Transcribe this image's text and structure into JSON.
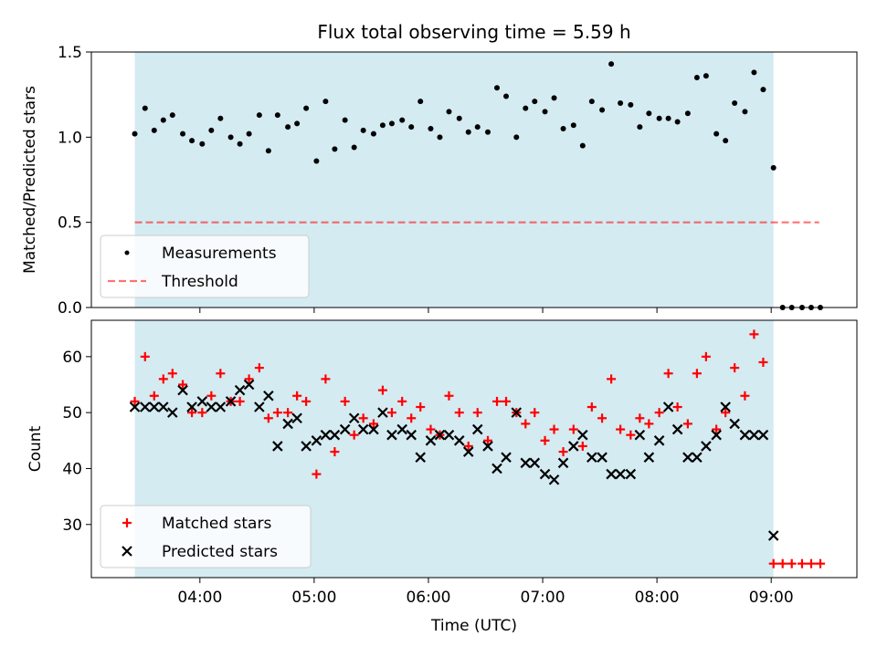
{
  "title": "Flux total observing time = 5.59 h",
  "xlabel": "Time (UTC)",
  "colors": {
    "shade": "#add8e6",
    "threshold": "#ff0000",
    "matched": "#ff0000",
    "predicted": "#000000",
    "measurements": "#000000"
  },
  "x_tick_labels": [
    "04:00",
    "05:00",
    "06:00",
    "07:00",
    "08:00",
    "09:00"
  ],
  "chart_data": [
    {
      "type": "scatter",
      "ylabel": "Matched/Predicted stars",
      "ylim": [
        0,
        1.5
      ],
      "y_ticks": [
        0,
        0.5,
        1.0,
        1.5
      ],
      "y_tick_labels": [
        "0.0",
        "0.5",
        "1.0",
        "1.5"
      ],
      "xlim_hours": [
        3.05,
        9.75
      ],
      "observing_window_hours": [
        3.43,
        9.02
      ],
      "legend": {
        "position": "lower-left",
        "entries": [
          {
            "label": "Measurements"
          },
          {
            "label": "Threshold"
          }
        ]
      },
      "threshold": {
        "value": 0.5,
        "x_from_hours": 3.43,
        "x_to_hours": 9.42
      },
      "series": [
        {
          "name": "Measurements",
          "marker": "dot",
          "points": [
            [
              3.43,
              1.02
            ],
            [
              3.52,
              1.17
            ],
            [
              3.6,
              1.04
            ],
            [
              3.68,
              1.1
            ],
            [
              3.76,
              1.13
            ],
            [
              3.85,
              1.02
            ],
            [
              3.93,
              0.98
            ],
            [
              4.02,
              0.96
            ],
            [
              4.1,
              1.04
            ],
            [
              4.18,
              1.11
            ],
            [
              4.27,
              1.0
            ],
            [
              4.35,
              0.96
            ],
            [
              4.43,
              1.02
            ],
            [
              4.52,
              1.13
            ],
            [
              4.6,
              0.92
            ],
            [
              4.68,
              1.13
            ],
            [
              4.77,
              1.06
            ],
            [
              4.85,
              1.08
            ],
            [
              4.93,
              1.17
            ],
            [
              5.02,
              0.86
            ],
            [
              5.1,
              1.21
            ],
            [
              5.18,
              0.93
            ],
            [
              5.27,
              1.1
            ],
            [
              5.35,
              0.94
            ],
            [
              5.43,
              1.04
            ],
            [
              5.52,
              1.02
            ],
            [
              5.6,
              1.07
            ],
            [
              5.68,
              1.08
            ],
            [
              5.77,
              1.1
            ],
            [
              5.85,
              1.06
            ],
            [
              5.93,
              1.21
            ],
            [
              6.02,
              1.05
            ],
            [
              6.1,
              1.0
            ],
            [
              6.18,
              1.15
            ],
            [
              6.27,
              1.11
            ],
            [
              6.35,
              1.03
            ],
            [
              6.43,
              1.06
            ],
            [
              6.52,
              1.03
            ],
            [
              6.6,
              1.29
            ],
            [
              6.68,
              1.24
            ],
            [
              6.77,
              1.0
            ],
            [
              6.85,
              1.17
            ],
            [
              6.93,
              1.21
            ],
            [
              7.02,
              1.15
            ],
            [
              7.1,
              1.23
            ],
            [
              7.18,
              1.05
            ],
            [
              7.27,
              1.07
            ],
            [
              7.35,
              0.95
            ],
            [
              7.43,
              1.21
            ],
            [
              7.52,
              1.16
            ],
            [
              7.6,
              1.43
            ],
            [
              7.68,
              1.2
            ],
            [
              7.77,
              1.19
            ],
            [
              7.85,
              1.06
            ],
            [
              7.93,
              1.14
            ],
            [
              8.02,
              1.11
            ],
            [
              8.1,
              1.11
            ],
            [
              8.18,
              1.09
            ],
            [
              8.27,
              1.14
            ],
            [
              8.35,
              1.35
            ],
            [
              8.43,
              1.36
            ],
            [
              8.52,
              1.02
            ],
            [
              8.6,
              0.98
            ],
            [
              8.68,
              1.2
            ],
            [
              8.77,
              1.15
            ],
            [
              8.85,
              1.38
            ],
            [
              8.93,
              1.28
            ],
            [
              9.02,
              0.82
            ],
            [
              9.1,
              0.0
            ],
            [
              9.18,
              0.0
            ],
            [
              9.27,
              0.0
            ],
            [
              9.35,
              0.0
            ],
            [
              9.43,
              0.0
            ]
          ]
        }
      ]
    },
    {
      "type": "scatter",
      "ylabel": "Count",
      "ylim": [
        20.5,
        66.5
      ],
      "y_ticks": [
        30,
        40,
        50,
        60
      ],
      "y_tick_labels": [
        "30",
        "40",
        "50",
        "60"
      ],
      "xlim_hours": [
        3.05,
        9.75
      ],
      "observing_window_hours": [
        3.43,
        9.02
      ],
      "legend": {
        "position": "lower-left",
        "entries": [
          {
            "label": "Matched stars"
          },
          {
            "label": "Predicted stars"
          }
        ]
      },
      "series": [
        {
          "name": "Matched stars",
          "marker": "plus",
          "points": [
            [
              3.43,
              52
            ],
            [
              3.52,
              60
            ],
            [
              3.6,
              53
            ],
            [
              3.68,
              56
            ],
            [
              3.76,
              57
            ],
            [
              3.85,
              55
            ],
            [
              3.93,
              50
            ],
            [
              4.02,
              50
            ],
            [
              4.1,
              53
            ],
            [
              4.18,
              57
            ],
            [
              4.27,
              52
            ],
            [
              4.35,
              52
            ],
            [
              4.43,
              56
            ],
            [
              4.52,
              58
            ],
            [
              4.6,
              49
            ],
            [
              4.68,
              50
            ],
            [
              4.77,
              50
            ],
            [
              4.85,
              53
            ],
            [
              4.93,
              52
            ],
            [
              5.02,
              39
            ],
            [
              5.1,
              56
            ],
            [
              5.18,
              43
            ],
            [
              5.27,
              52
            ],
            [
              5.35,
              46
            ],
            [
              5.43,
              49
            ],
            [
              5.52,
              48
            ],
            [
              5.6,
              54
            ],
            [
              5.68,
              50
            ],
            [
              5.77,
              52
            ],
            [
              5.85,
              49
            ],
            [
              5.93,
              51
            ],
            [
              6.02,
              47
            ],
            [
              6.1,
              46
            ],
            [
              6.18,
              53
            ],
            [
              6.27,
              50
            ],
            [
              6.35,
              44
            ],
            [
              6.43,
              50
            ],
            [
              6.52,
              45
            ],
            [
              6.6,
              52
            ],
            [
              6.68,
              52
            ],
            [
              6.77,
              50
            ],
            [
              6.85,
              48
            ],
            [
              6.93,
              50
            ],
            [
              7.02,
              45
            ],
            [
              7.1,
              47
            ],
            [
              7.18,
              43
            ],
            [
              7.27,
              47
            ],
            [
              7.35,
              44
            ],
            [
              7.43,
              51
            ],
            [
              7.52,
              49
            ],
            [
              7.6,
              56
            ],
            [
              7.68,
              47
            ],
            [
              7.77,
              46
            ],
            [
              7.85,
              49
            ],
            [
              7.93,
              48
            ],
            [
              8.02,
              50
            ],
            [
              8.1,
              57
            ],
            [
              8.18,
              51
            ],
            [
              8.27,
              48
            ],
            [
              8.35,
              57
            ],
            [
              8.43,
              60
            ],
            [
              8.52,
              47
            ],
            [
              8.6,
              50
            ],
            [
              8.68,
              58
            ],
            [
              8.77,
              53
            ],
            [
              8.85,
              64
            ],
            [
              8.93,
              59
            ],
            [
              9.02,
              23
            ],
            [
              9.1,
              23
            ],
            [
              9.18,
              23
            ],
            [
              9.27,
              23
            ],
            [
              9.35,
              23
            ],
            [
              9.43,
              23
            ]
          ]
        },
        {
          "name": "Predicted stars",
          "marker": "x",
          "points": [
            [
              3.43,
              51
            ],
            [
              3.52,
              51
            ],
            [
              3.6,
              51
            ],
            [
              3.68,
              51
            ],
            [
              3.76,
              50
            ],
            [
              3.85,
              54
            ],
            [
              3.93,
              51
            ],
            [
              4.02,
              52
            ],
            [
              4.1,
              51
            ],
            [
              4.18,
              51
            ],
            [
              4.27,
              52
            ],
            [
              4.35,
              54
            ],
            [
              4.43,
              55
            ],
            [
              4.52,
              51
            ],
            [
              4.6,
              53
            ],
            [
              4.68,
              44
            ],
            [
              4.77,
              48
            ],
            [
              4.85,
              49
            ],
            [
              4.93,
              44
            ],
            [
              5.02,
              45
            ],
            [
              5.1,
              46
            ],
            [
              5.18,
              46
            ],
            [
              5.27,
              47
            ],
            [
              5.35,
              49
            ],
            [
              5.43,
              47
            ],
            [
              5.52,
              47
            ],
            [
              5.6,
              50
            ],
            [
              5.68,
              46
            ],
            [
              5.77,
              47
            ],
            [
              5.85,
              46
            ],
            [
              5.93,
              42
            ],
            [
              6.02,
              45
            ],
            [
              6.1,
              46
            ],
            [
              6.18,
              46
            ],
            [
              6.27,
              45
            ],
            [
              6.35,
              43
            ],
            [
              6.43,
              47
            ],
            [
              6.52,
              44
            ],
            [
              6.6,
              40
            ],
            [
              6.68,
              42
            ],
            [
              6.77,
              50
            ],
            [
              6.85,
              41
            ],
            [
              6.93,
              41
            ],
            [
              7.02,
              39
            ],
            [
              7.1,
              38
            ],
            [
              7.18,
              41
            ],
            [
              7.27,
              44
            ],
            [
              7.35,
              46
            ],
            [
              7.43,
              42
            ],
            [
              7.52,
              42
            ],
            [
              7.6,
              39
            ],
            [
              7.68,
              39
            ],
            [
              7.77,
              39
            ],
            [
              7.85,
              46
            ],
            [
              7.93,
              42
            ],
            [
              8.02,
              45
            ],
            [
              8.1,
              51
            ],
            [
              8.18,
              47
            ],
            [
              8.27,
              42
            ],
            [
              8.35,
              42
            ],
            [
              8.43,
              44
            ],
            [
              8.52,
              46
            ],
            [
              8.6,
              51
            ],
            [
              8.68,
              48
            ],
            [
              8.77,
              46
            ],
            [
              8.85,
              46
            ],
            [
              8.93,
              46
            ],
            [
              9.02,
              28
            ]
          ]
        }
      ]
    }
  ]
}
